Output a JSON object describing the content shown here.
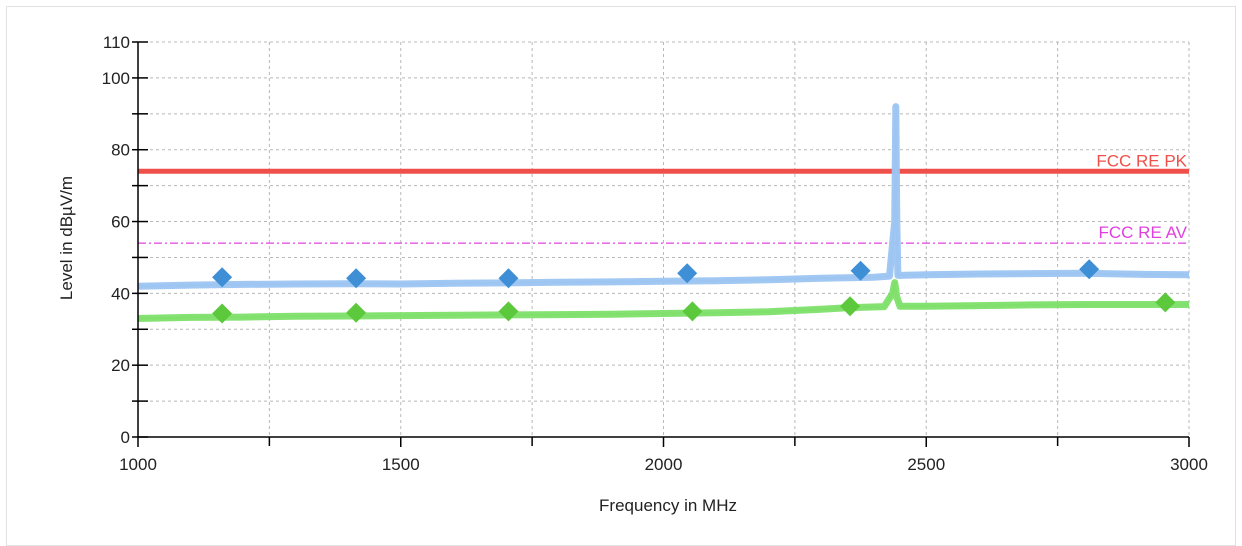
{
  "chart_data": {
    "type": "line",
    "title": "",
    "xlabel": "Frequency in MHz",
    "ylabel": "Level in dBµV/m",
    "xlim": [
      1000,
      3000
    ],
    "ylim": [
      0,
      110
    ],
    "x_major_ticks": [
      1000,
      1500,
      2000,
      2500,
      3000
    ],
    "x_minor_ticks": [
      1250,
      1750,
      2250,
      2750
    ],
    "y_labeled_ticks": [
      0,
      20,
      40,
      60,
      80,
      100,
      110
    ],
    "y_unlabeled_ticks": [
      10,
      30,
      50,
      70,
      90
    ],
    "grid": true,
    "limit_lines": [
      {
        "name": "FCC RE PK",
        "value": 74,
        "color": "#f0504a",
        "style": "solid"
      },
      {
        "name": "FCC RE AV",
        "value": 54,
        "color": "#e040e0",
        "style": "dashdot"
      }
    ],
    "series": [
      {
        "kind": "trace",
        "color": "#9cc4f2",
        "x": [
          1000,
          1100,
          1200,
          1300,
          1400,
          1500,
          1600,
          1700,
          1800,
          1900,
          2000,
          2100,
          2200,
          2300,
          2400,
          2430,
          2440,
          2442,
          2444,
          2446,
          2450,
          2500,
          2600,
          2700,
          2800,
          2900,
          3000
        ],
        "y": [
          42,
          42.3,
          42.5,
          42.6,
          42.7,
          42.6,
          42.8,
          42.9,
          43.1,
          43.2,
          43.4,
          43.5,
          43.8,
          44.2,
          44.5,
          44.8,
          60,
          92,
          60,
          45,
          45,
          45.2,
          45.4,
          45.5,
          45.6,
          45.3,
          45.2
        ]
      },
      {
        "kind": "trace",
        "color": "#7ee06a",
        "x": [
          1000,
          1100,
          1200,
          1300,
          1400,
          1500,
          1600,
          1700,
          1800,
          1900,
          2000,
          2100,
          2200,
          2300,
          2350,
          2420,
          2436,
          2440,
          2444,
          2450,
          2500,
          2600,
          2700,
          2800,
          2900,
          3000
        ],
        "y": [
          33,
          33.3,
          33.4,
          33.6,
          33.7,
          33.8,
          33.9,
          34,
          34.1,
          34.2,
          34.4,
          34.6,
          34.9,
          35.6,
          36,
          36.3,
          40,
          43,
          39,
          36.4,
          36.4,
          36.6,
          36.8,
          36.9,
          36.9,
          36.9
        ]
      },
      {
        "kind": "markers",
        "color": "#3f8fd6",
        "x": [
          1160,
          1415,
          1705,
          2045,
          2375,
          2810
        ],
        "y": [
          44.5,
          44.2,
          44.2,
          45.6,
          46.3,
          46.7
        ]
      },
      {
        "kind": "markers",
        "color": "#5cc83c",
        "x": [
          1160,
          1415,
          1705,
          2055,
          2355,
          2955
        ],
        "y": [
          34.4,
          34.6,
          35,
          35,
          36.4,
          37.5
        ]
      }
    ]
  }
}
